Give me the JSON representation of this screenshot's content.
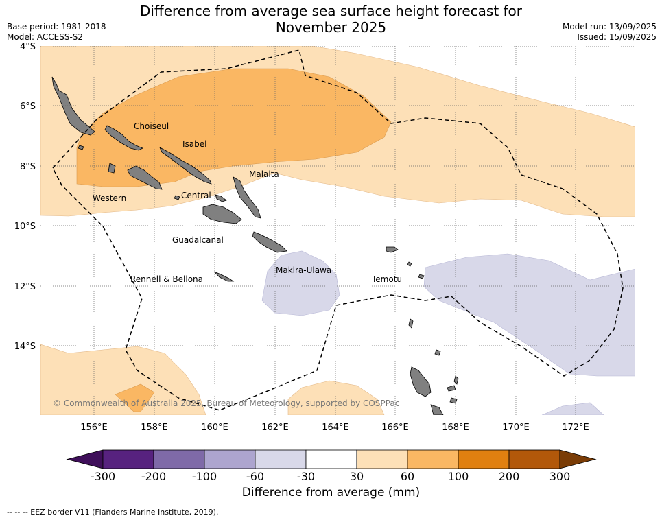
{
  "title_line1": "Difference from average sea surface height forecast for",
  "title_line2": "November 2025",
  "base_period": "Base period: 1981-2018",
  "model": "Model: ACCESS-S2",
  "model_run": "Model run: 13/09/2025",
  "issued": "Issued: 15/09/2025",
  "lat_labels": [
    "4°S",
    "6°S",
    "8°S",
    "10°S",
    "12°S",
    "14°S"
  ],
  "lon_labels": [
    "156°E",
    "158°E",
    "160°E",
    "162°E",
    "164°E",
    "166°E",
    "168°E",
    "170°E",
    "172°E"
  ],
  "provinces": [
    "Choiseul",
    "Isabel",
    "Malaita",
    "Western",
    "Central",
    "Guadalcanal",
    "Makira-Ulawa",
    "Rennell & Bellona",
    "Temotu"
  ],
  "copyright": "© Commonwealth of Australia 2025, Bureau of Meteorology, supported by COSPPac",
  "colorbar": {
    "title": "Difference from average (mm)",
    "ticks": [
      "-300",
      "-200",
      "-100",
      "-60",
      "-30",
      "30",
      "60",
      "100",
      "200",
      "300"
    ],
    "colors": [
      "#3f0f5a",
      "#57227f",
      "#7f6aa8",
      "#ada5cf",
      "#d8d8e9",
      "#ffffff",
      "#fde0b7",
      "#fab763",
      "#e08010",
      "#b2580a",
      "#7a3c06"
    ]
  },
  "footnote": "--  --  -- EEZ border V11 (Flanders Marine Institute, 2019)."
}
